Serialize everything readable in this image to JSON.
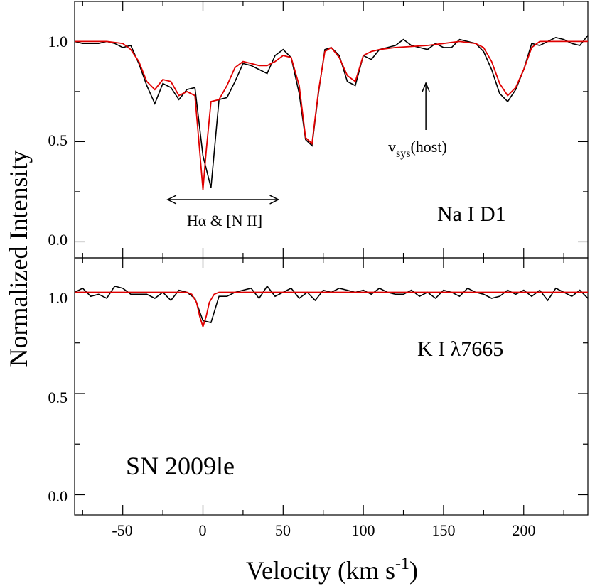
{
  "chart_data": [
    {
      "type": "line",
      "panel": "top",
      "label": "Na I D1",
      "xlim": [
        -80,
        240
      ],
      "ylim": [
        -0.08,
        1.2
      ],
      "xticks": [
        -50,
        0,
        50,
        100,
        150,
        200
      ],
      "yticks": [
        0.0,
        0.5,
        1.0
      ],
      "ytick_labels": [
        "0.0",
        "0.5",
        "1.0"
      ],
      "annotations": {
        "halpha_label": "Hα & [N II]",
        "halpha_range": [
          -22,
          47
        ],
        "vsys_label_v": "v",
        "vsys_label_sub": "sys",
        "vsys_label_rest": "(host)",
        "vsys_velocity": 139
      },
      "series": [
        {
          "name": "data",
          "color": "#000000",
          "x": [
            -80,
            -75,
            -70,
            -65,
            -60,
            -55,
            -50,
            -45,
            -40,
            -35,
            -30,
            -25,
            -20,
            -15,
            -10,
            -5,
            0,
            5,
            10,
            15,
            20,
            25,
            30,
            35,
            40,
            45,
            50,
            55,
            60,
            64,
            68,
            72,
            76,
            80,
            85,
            90,
            95,
            100,
            105,
            110,
            115,
            120,
            125,
            130,
            135,
            140,
            145,
            150,
            155,
            160,
            165,
            170,
            175,
            180,
            185,
            190,
            195,
            200,
            205,
            210,
            215,
            220,
            225,
            230,
            235,
            240
          ],
          "y": [
            1.0,
            0.99,
            0.99,
            0.99,
            1.0,
            0.99,
            0.97,
            0.98,
            0.89,
            0.78,
            0.69,
            0.79,
            0.77,
            0.71,
            0.76,
            0.77,
            0.43,
            0.27,
            0.71,
            0.72,
            0.8,
            0.89,
            0.88,
            0.86,
            0.84,
            0.93,
            0.96,
            0.92,
            0.74,
            0.51,
            0.48,
            0.74,
            0.96,
            0.97,
            0.93,
            0.8,
            0.78,
            0.93,
            0.91,
            0.96,
            0.97,
            0.98,
            1.01,
            0.98,
            0.97,
            0.96,
            0.99,
            0.97,
            0.97,
            1.01,
            1.0,
            0.99,
            0.95,
            0.86,
            0.74,
            0.7,
            0.76,
            0.86,
            0.99,
            0.98,
            1.0,
            1.02,
            1.01,
            0.99,
            0.98,
            1.03
          ]
        },
        {
          "name": "model",
          "color": "#e00000",
          "x": [
            -80,
            -60,
            -50,
            -45,
            -40,
            -35,
            -30,
            -25,
            -20,
            -15,
            -10,
            -5,
            -2,
            0,
            2,
            5,
            10,
            15,
            20,
            25,
            30,
            35,
            40,
            45,
            50,
            55,
            60,
            64,
            68,
            72,
            76,
            80,
            85,
            90,
            95,
            100,
            105,
            110,
            120,
            140,
            160,
            170,
            175,
            180,
            185,
            190,
            195,
            200,
            205,
            210,
            220,
            240
          ],
          "y": [
            1.0,
            1.0,
            0.99,
            0.96,
            0.9,
            0.8,
            0.76,
            0.81,
            0.8,
            0.73,
            0.75,
            0.73,
            0.45,
            0.26,
            0.45,
            0.7,
            0.71,
            0.78,
            0.87,
            0.9,
            0.89,
            0.88,
            0.88,
            0.9,
            0.93,
            0.92,
            0.78,
            0.52,
            0.49,
            0.75,
            0.95,
            0.97,
            0.92,
            0.83,
            0.8,
            0.93,
            0.95,
            0.96,
            0.97,
            0.98,
            1.0,
            0.99,
            0.97,
            0.9,
            0.79,
            0.73,
            0.77,
            0.86,
            0.97,
            1.0,
            1.0,
            1.0
          ]
        }
      ]
    },
    {
      "type": "line",
      "panel": "bottom",
      "label": "K I λ7665",
      "object": "SN 2009le",
      "xlim": [
        -80,
        240
      ],
      "ylim": [
        -0.1,
        1.17
      ],
      "xticks": [
        -50,
        0,
        50,
        100,
        150,
        200
      ],
      "xtick_labels": [
        "-50",
        "0",
        "50",
        "100",
        "150",
        "200"
      ],
      "yticks": [
        0.0,
        0.5,
        1.0
      ],
      "ytick_labels": [
        "0.0",
        "0.5",
        "1.0"
      ],
      "series": [
        {
          "name": "data",
          "color": "#000000",
          "x": [
            -80,
            -75,
            -70,
            -65,
            -60,
            -55,
            -50,
            -45,
            -40,
            -35,
            -30,
            -25,
            -20,
            -15,
            -10,
            -5,
            0,
            5,
            10,
            15,
            20,
            25,
            30,
            35,
            40,
            45,
            50,
            55,
            60,
            65,
            70,
            75,
            80,
            85,
            90,
            95,
            100,
            105,
            110,
            115,
            120,
            125,
            130,
            135,
            140,
            145,
            150,
            155,
            160,
            165,
            170,
            175,
            180,
            185,
            190,
            195,
            200,
            205,
            210,
            215,
            220,
            225,
            230,
            235,
            240
          ],
          "y": [
            1.0,
            1.02,
            0.98,
            0.99,
            0.97,
            1.03,
            1.02,
            0.99,
            0.99,
            0.99,
            0.97,
            1.0,
            0.96,
            1.01,
            1.0,
            0.97,
            0.86,
            0.85,
            0.98,
            0.98,
            1.0,
            1.01,
            1.02,
            0.97,
            1.03,
            0.98,
            1.0,
            1.02,
            0.97,
            1.0,
            0.96,
            1.01,
            1.0,
            1.02,
            1.01,
            1.0,
            1.01,
            0.99,
            1.02,
            1.0,
            0.99,
            0.99,
            1.01,
            0.98,
            1.0,
            0.97,
            1.01,
            1.0,
            0.98,
            1.02,
            1.0,
            0.99,
            0.97,
            0.98,
            1.01,
            0.99,
            1.01,
            0.98,
            1.01,
            0.96,
            1.02,
            1.0,
            0.98,
            1.01,
            0.97
          ]
        },
        {
          "name": "model",
          "color": "#e00000",
          "x": [
            -80,
            -10,
            -7,
            -4,
            -2,
            0,
            2,
            4,
            7,
            10,
            240
          ],
          "y": [
            1.0,
            1.0,
            0.99,
            0.95,
            0.88,
            0.83,
            0.88,
            0.95,
            0.99,
            1.0,
            1.0
          ]
        }
      ]
    }
  ],
  "axes": {
    "xlabel": "Velocity (km s",
    "xlabel_sup": "-1",
    "xlabel_end": ")",
    "ylabel": "Normalized Intensity"
  }
}
